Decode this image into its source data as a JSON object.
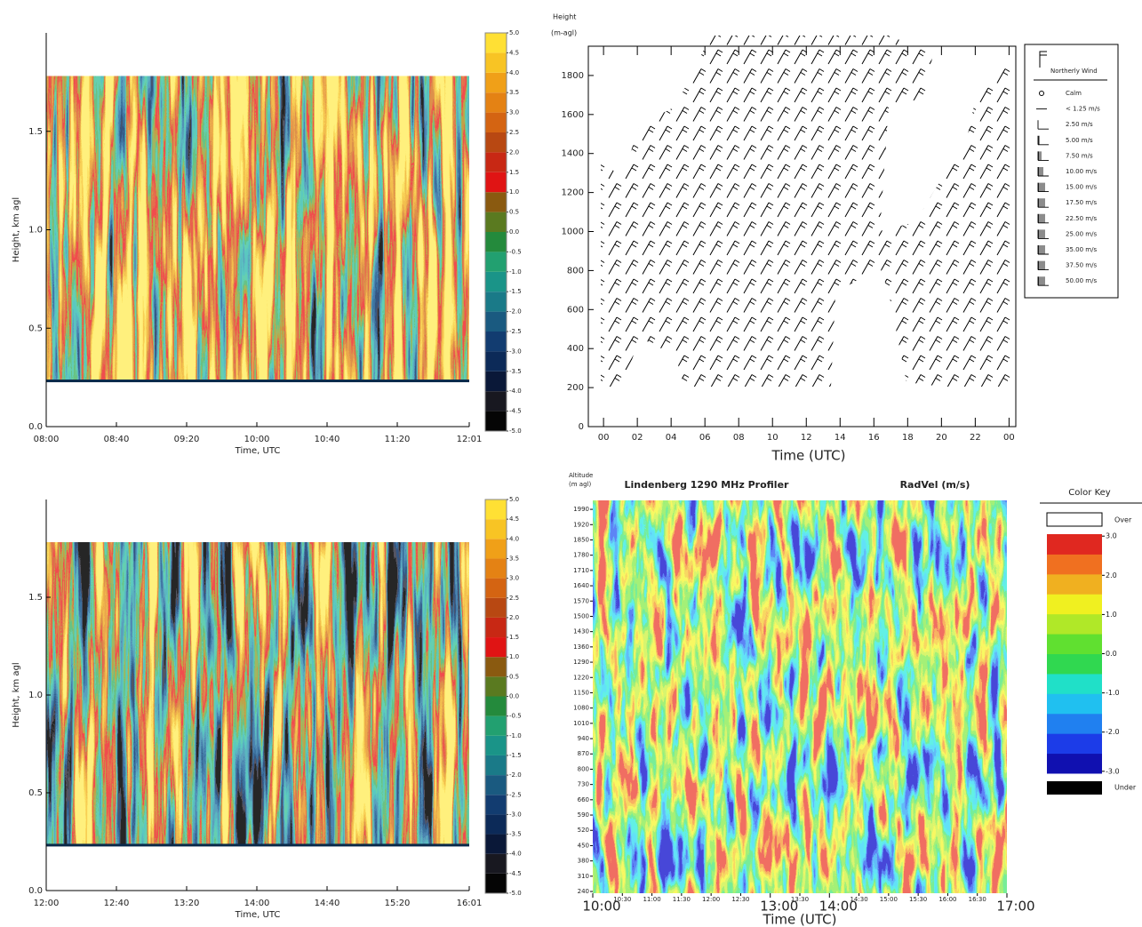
{
  "chart_data": [
    {
      "type": "heatmap",
      "y_label": "Height, km agl",
      "x_label": "Time, UTC",
      "xlim": [
        480,
        721
      ],
      "xticks": [
        {
          "value": 480,
          "label": "08:00"
        },
        {
          "value": 520,
          "label": "08:40"
        },
        {
          "value": 560,
          "label": "09:20"
        },
        {
          "value": 600,
          "label": "10:00"
        },
        {
          "value": 640,
          "label": "10:40"
        },
        {
          "value": 680,
          "label": "11:20"
        },
        {
          "value": 721,
          "label": "12:01"
        }
      ],
      "ylim": [
        0,
        2
      ],
      "yticks": [
        {
          "value": 0,
          "label": "0.0"
        },
        0.5,
        {
          "value": 1,
          "label": "1.0"
        },
        1.5
      ],
      "colorbar": {
        "ticks": [
          {
            "value": 5,
            "label": "5.0"
          },
          4.5,
          {
            "value": 4,
            "label": "4.0"
          },
          3.5,
          {
            "value": 3,
            "label": "3.0"
          },
          2.5,
          {
            "value": 2,
            "label": "2.0"
          },
          1.5,
          {
            "value": 1,
            "label": "1.0"
          },
          0.5,
          {
            "value": 0,
            "label": "0.0"
          },
          -0.5,
          {
            "value": -1,
            "label": "-1.0"
          },
          -1.5,
          {
            "value": -2,
            "label": "-2.0"
          },
          -2.5,
          {
            "value": -3,
            "label": "-3.0"
          },
          -3.5,
          {
            "value": -4,
            "label": "-4.0"
          },
          -4.5,
          {
            "value": -5,
            "label": "-5.0"
          }
        ],
        "colors": [
          "#050505",
          "#181820",
          "#0a1838",
          "#0c2a58",
          "#123c70",
          "#1a5a80",
          "#1a7a88",
          "#1a9488",
          "#22a070",
          "#248a3c",
          "#5a7a20",
          "#8a5a10",
          "#e01414",
          "#c82814",
          "#b84812",
          "#d46412",
          "#e48214",
          "#f0a018",
          "#f8c424",
          "#ffe034"
        ]
      }
    },
    {
      "type": "wind_barb",
      "y_label": [
        "Height",
        "(m-agl)"
      ],
      "x_label": "Time (UTC)",
      "xlim": [
        -0.9,
        24.4
      ],
      "xticks": [
        {
          "value": 0,
          "label": "00"
        },
        {
          "value": 2,
          "label": "02"
        },
        {
          "value": 4,
          "label": "04"
        },
        {
          "value": 6,
          "label": "06"
        },
        {
          "value": 8,
          "label": "08"
        },
        10,
        12,
        14,
        16,
        18,
        20,
        22,
        {
          "value": 24,
          "label": "00"
        }
      ],
      "ylim": [
        0,
        1950
      ],
      "yticks": [
        0,
        200,
        400,
        600,
        800,
        1000,
        1200,
        1400,
        1600,
        1800
      ],
      "legend": {
        "title": "Northerly Wind",
        "items": [
          "Calm",
          "< 1.25 m/s",
          "2.50 m/s",
          "5.00 m/s",
          "7.50 m/s",
          "10.00 m/s",
          "15.00 m/s",
          "17.50 m/s",
          "22.50 m/s",
          "25.00 m/s",
          "35.00 m/s",
          "37.50 m/s",
          "50.00 m/s"
        ]
      }
    },
    {
      "type": "heatmap",
      "y_label": "Height, km agl",
      "x_label": "Time, UTC",
      "xlim": [
        720,
        961
      ],
      "xticks": [
        {
          "value": 720,
          "label": "12:00"
        },
        {
          "value": 760,
          "label": "12:40"
        },
        {
          "value": 800,
          "label": "13:20"
        },
        {
          "value": 840,
          "label": "14:00"
        },
        {
          "value": 880,
          "label": "14:40"
        },
        {
          "value": 920,
          "label": "15:20"
        },
        {
          "value": 961,
          "label": "16:01"
        }
      ],
      "ylim": [
        0,
        2
      ],
      "yticks": [
        {
          "value": 0,
          "label": "0.0"
        },
        0.5,
        {
          "value": 1,
          "label": "1.0"
        },
        1.5
      ],
      "colorbar": {
        "ticks": [
          {
            "value": 5,
            "label": "5.0"
          },
          4.5,
          {
            "value": 4,
            "label": "4.0"
          },
          3.5,
          {
            "value": 3,
            "label": "3.0"
          },
          2.5,
          {
            "value": 2,
            "label": "2.0"
          },
          1.5,
          {
            "value": 1,
            "label": "1.0"
          },
          0.5,
          {
            "value": 0,
            "label": "0.0"
          },
          -0.5,
          {
            "value": -1,
            "label": "-1.0"
          },
          -1.5,
          {
            "value": -2,
            "label": "-2.0"
          },
          -2.5,
          {
            "value": -3,
            "label": "-3.0"
          },
          -3.5,
          {
            "value": -4,
            "label": "-4.0"
          },
          -4.5,
          {
            "value": -5,
            "label": "-5.0"
          }
        ],
        "colors": [
          "#050505",
          "#181820",
          "#0a1838",
          "#0c2a58",
          "#123c70",
          "#1a5a80",
          "#1a7a88",
          "#1a9488",
          "#22a070",
          "#248a3c",
          "#5a7a20",
          "#8a5a10",
          "#e01414",
          "#c82814",
          "#b84812",
          "#d46412",
          "#e48214",
          "#f0a018",
          "#f8c424",
          "#ffe034"
        ]
      }
    },
    {
      "type": "heatmap",
      "title": "Lindenberg 1290 MHz Profiler",
      "subtitle": "RadVel (m/s)",
      "y_label": [
        "Altitude",
        "(m agl)"
      ],
      "x_label": "Time (UTC)",
      "xlim": [
        600,
        1020
      ],
      "xticks_minor": [
        {
          "value": 630,
          "label": "10:30"
        },
        {
          "value": 660,
          "label": "11:00"
        },
        {
          "value": 690,
          "label": "11:30"
        },
        {
          "value": 720,
          "label": "12:00"
        },
        {
          "value": 750,
          "label": "12:30"
        },
        {
          "value": 810,
          "label": "13:30"
        },
        {
          "value": 870,
          "label": "14:30"
        },
        {
          "value": 900,
          "label": "15:00"
        },
        {
          "value": 930,
          "label": "15:30"
        },
        {
          "value": 960,
          "label": "16:00"
        },
        {
          "value": 990,
          "label": "16:30"
        }
      ],
      "xticks": [
        {
          "value": 600,
          "label": "10:00"
        },
        {
          "value": 780,
          "label": "13:00"
        },
        {
          "value": 840,
          "label": "14:00"
        },
        {
          "value": 1020,
          "label": "17:00"
        }
      ],
      "ylim": [
        232,
        2031
      ],
      "yticks": [
        240,
        310,
        380,
        450,
        520,
        590,
        660,
        730,
        800,
        870,
        940,
        1010,
        1080,
        1150,
        1220,
        1290,
        1360,
        1430,
        1500,
        1570,
        1640,
        1710,
        1780,
        1850,
        1920,
        1990
      ],
      "color_key": {
        "title": "Color Key",
        "over": "Over",
        "under": "Under",
        "over_color": "#ffffff",
        "under_color": "#000000",
        "lim": [
          -3.05,
          3.05
        ],
        "ticks": [
          {
            "value": 3,
            "label": "3.0"
          },
          {
            "value": 2,
            "label": "2.0"
          },
          {
            "value": 1,
            "label": "1.0"
          },
          {
            "value": 0,
            "label": "0.0"
          },
          {
            "value": -1,
            "label": "-1.0"
          },
          {
            "value": -2,
            "label": "-2.0"
          },
          {
            "value": -3,
            "label": "-3.0"
          }
        ],
        "colors": [
          "#1010b0",
          "#1c3ce8",
          "#2080f0",
          "#20c0f0",
          "#20e0c8",
          "#30d850",
          "#60e030",
          "#b0e828",
          "#f0f020",
          "#f0b020",
          "#f07020",
          "#e02820"
        ]
      }
    }
  ]
}
